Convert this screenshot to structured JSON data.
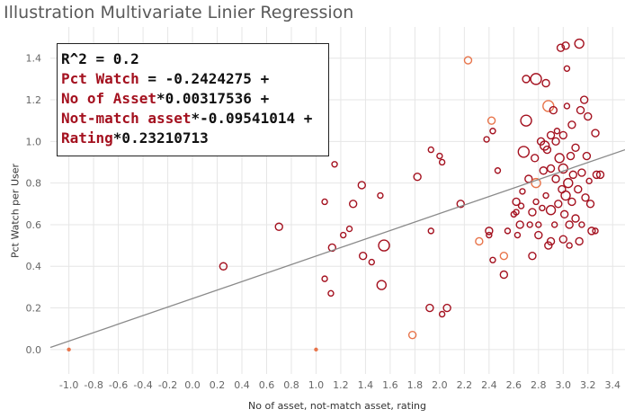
{
  "title": "Illustration Multivariate Linier Regression",
  "equation": {
    "r2": "R^2 = 0.2",
    "line1_label": "Pct Watch",
    "line1_value": " = -0.2424275 +",
    "line2_label": "No of Asset",
    "line2_value": "*0.00317536 +",
    "line3_label": "Not-match asset",
    "line3_value": "*-0.09541014 +",
    "line4_label": "Rating",
    "line4_value": "*0.23210713"
  },
  "colors": {
    "point_dark": "#a4111f",
    "point_light": "#e8744a",
    "trend": "#8a8a8a",
    "grid": "#e6e6e6",
    "tick": "#666666"
  },
  "chart_data": {
    "type": "scatter",
    "title": "Illustration Multivariate Linier Regression",
    "xlabel": "No of asset, not-match asset, rating",
    "ylabel": "Pct Watch per User",
    "xlim": [
      -1.15,
      3.5
    ],
    "ylim": [
      -0.1,
      1.55
    ],
    "x_ticks": [
      "-1.0",
      "-0.8",
      "-0.6",
      "-0.4",
      "-0.2",
      "0.0",
      "0.2",
      "0.4",
      "0.6",
      "0.8",
      "1.0",
      "1.2",
      "1.4",
      "1.6",
      "1.8",
      "2.0",
      "2.2",
      "2.4",
      "2.6",
      "2.8",
      "3.0",
      "3.2",
      "3.4"
    ],
    "y_ticks": [
      "0.0",
      "0.2",
      "0.4",
      "0.6",
      "0.8",
      "1.0",
      "1.2",
      "1.4"
    ],
    "grid": true,
    "trend_line": {
      "x": [
        -1.15,
        3.5
      ],
      "y": [
        0.01,
        0.96
      ]
    },
    "points": [
      {
        "x": -1.0,
        "y": 0.0,
        "s": 1,
        "c": "light"
      },
      {
        "x": 1.0,
        "y": 0.0,
        "s": 1,
        "c": "light"
      },
      {
        "x": 0.25,
        "y": 0.4,
        "s": 4,
        "c": "dark"
      },
      {
        "x": 0.7,
        "y": 0.59,
        "s": 4,
        "c": "dark"
      },
      {
        "x": 1.07,
        "y": 0.34,
        "s": 3,
        "c": "dark"
      },
      {
        "x": 1.12,
        "y": 0.27,
        "s": 3,
        "c": "dark"
      },
      {
        "x": 1.13,
        "y": 0.49,
        "s": 4,
        "c": "dark"
      },
      {
        "x": 1.07,
        "y": 0.71,
        "s": 3,
        "c": "dark"
      },
      {
        "x": 1.15,
        "y": 0.89,
        "s": 3,
        "c": "dark"
      },
      {
        "x": 1.22,
        "y": 0.55,
        "s": 3,
        "c": "dark"
      },
      {
        "x": 1.27,
        "y": 0.58,
        "s": 3,
        "c": "dark"
      },
      {
        "x": 1.3,
        "y": 0.7,
        "s": 4,
        "c": "dark"
      },
      {
        "x": 1.37,
        "y": 0.79,
        "s": 4,
        "c": "dark"
      },
      {
        "x": 1.38,
        "y": 0.45,
        "s": 4,
        "c": "dark"
      },
      {
        "x": 1.45,
        "y": 0.42,
        "s": 3,
        "c": "dark"
      },
      {
        "x": 1.53,
        "y": 0.31,
        "s": 5,
        "c": "dark"
      },
      {
        "x": 1.55,
        "y": 0.5,
        "s": 6,
        "c": "dark"
      },
      {
        "x": 1.52,
        "y": 0.74,
        "s": 3,
        "c": "dark"
      },
      {
        "x": 1.78,
        "y": 0.07,
        "s": 4,
        "c": "light"
      },
      {
        "x": 1.82,
        "y": 0.83,
        "s": 4,
        "c": "dark"
      },
      {
        "x": 1.92,
        "y": 0.2,
        "s": 4,
        "c": "dark"
      },
      {
        "x": 1.93,
        "y": 0.57,
        "s": 3,
        "c": "dark"
      },
      {
        "x": 1.93,
        "y": 0.96,
        "s": 3,
        "c": "dark"
      },
      {
        "x": 2.0,
        "y": 0.93,
        "s": 3,
        "c": "dark"
      },
      {
        "x": 2.02,
        "y": 0.9,
        "s": 3,
        "c": "dark"
      },
      {
        "x": 2.02,
        "y": 0.17,
        "s": 3,
        "c": "dark"
      },
      {
        "x": 2.06,
        "y": 0.2,
        "s": 4,
        "c": "dark"
      },
      {
        "x": 2.17,
        "y": 0.7,
        "s": 4,
        "c": "dark"
      },
      {
        "x": 2.23,
        "y": 1.39,
        "s": 4,
        "c": "light"
      },
      {
        "x": 2.32,
        "y": 0.52,
        "s": 4,
        "c": "light"
      },
      {
        "x": 2.38,
        "y": 1.01,
        "s": 3,
        "c": "dark"
      },
      {
        "x": 2.4,
        "y": 0.57,
        "s": 4,
        "c": "dark"
      },
      {
        "x": 2.4,
        "y": 0.55,
        "s": 3,
        "c": "dark"
      },
      {
        "x": 2.42,
        "y": 1.1,
        "s": 4,
        "c": "light"
      },
      {
        "x": 2.43,
        "y": 1.05,
        "s": 3,
        "c": "dark"
      },
      {
        "x": 2.43,
        "y": 0.43,
        "s": 3,
        "c": "dark"
      },
      {
        "x": 2.47,
        "y": 0.86,
        "s": 3,
        "c": "dark"
      },
      {
        "x": 2.52,
        "y": 0.36,
        "s": 4,
        "c": "dark"
      },
      {
        "x": 2.52,
        "y": 0.45,
        "s": 4,
        "c": "light"
      },
      {
        "x": 2.55,
        "y": 0.57,
        "s": 3,
        "c": "dark"
      },
      {
        "x": 2.62,
        "y": 0.71,
        "s": 4,
        "c": "dark"
      },
      {
        "x": 2.62,
        "y": 0.66,
        "s": 3,
        "c": "dark"
      },
      {
        "x": 2.63,
        "y": 0.55,
        "s": 3,
        "c": "dark"
      },
      {
        "x": 2.65,
        "y": 0.6,
        "s": 4,
        "c": "dark"
      },
      {
        "x": 2.66,
        "y": 0.69,
        "s": 3,
        "c": "dark"
      },
      {
        "x": 2.67,
        "y": 0.76,
        "s": 3,
        "c": "dark"
      },
      {
        "x": 2.68,
        "y": 0.95,
        "s": 6,
        "c": "dark"
      },
      {
        "x": 2.7,
        "y": 1.1,
        "s": 6,
        "c": "dark"
      },
      {
        "x": 2.7,
        "y": 1.3,
        "s": 4,
        "c": "dark"
      },
      {
        "x": 2.72,
        "y": 0.82,
        "s": 4,
        "c": "dark"
      },
      {
        "x": 2.73,
        "y": 0.6,
        "s": 3,
        "c": "dark"
      },
      {
        "x": 2.75,
        "y": 0.45,
        "s": 4,
        "c": "dark"
      },
      {
        "x": 2.75,
        "y": 0.66,
        "s": 4,
        "c": "dark"
      },
      {
        "x": 2.77,
        "y": 0.92,
        "s": 4,
        "c": "dark"
      },
      {
        "x": 2.78,
        "y": 0.71,
        "s": 3,
        "c": "dark"
      },
      {
        "x": 2.78,
        "y": 1.3,
        "s": 6,
        "c": "dark"
      },
      {
        "x": 2.78,
        "y": 0.8,
        "s": 5,
        "c": "light"
      },
      {
        "x": 2.8,
        "y": 0.55,
        "s": 4,
        "c": "dark"
      },
      {
        "x": 2.82,
        "y": 1.0,
        "s": 4,
        "c": "dark"
      },
      {
        "x": 2.83,
        "y": 0.68,
        "s": 3,
        "c": "dark"
      },
      {
        "x": 2.84,
        "y": 0.86,
        "s": 4,
        "c": "dark"
      },
      {
        "x": 2.85,
        "y": 0.98,
        "s": 5,
        "c": "dark"
      },
      {
        "x": 2.86,
        "y": 0.74,
        "s": 3,
        "c": "dark"
      },
      {
        "x": 2.87,
        "y": 0.96,
        "s": 4,
        "c": "dark"
      },
      {
        "x": 2.88,
        "y": 1.17,
        "s": 6,
        "c": "light"
      },
      {
        "x": 2.88,
        "y": 0.5,
        "s": 4,
        "c": "dark"
      },
      {
        "x": 2.9,
        "y": 0.67,
        "s": 5,
        "c": "dark"
      },
      {
        "x": 2.9,
        "y": 1.03,
        "s": 4,
        "c": "dark"
      },
      {
        "x": 2.9,
        "y": 0.87,
        "s": 4,
        "c": "dark"
      },
      {
        "x": 2.9,
        "y": 0.52,
        "s": 4,
        "c": "dark"
      },
      {
        "x": 2.92,
        "y": 1.15,
        "s": 4,
        "c": "dark"
      },
      {
        "x": 2.93,
        "y": 0.6,
        "s": 3,
        "c": "dark"
      },
      {
        "x": 2.94,
        "y": 0.82,
        "s": 4,
        "c": "dark"
      },
      {
        "x": 2.95,
        "y": 1.05,
        "s": 3,
        "c": "dark"
      },
      {
        "x": 2.96,
        "y": 0.7,
        "s": 4,
        "c": "dark"
      },
      {
        "x": 2.97,
        "y": 0.92,
        "s": 5,
        "c": "dark"
      },
      {
        "x": 2.98,
        "y": 1.45,
        "s": 4,
        "c": "dark"
      },
      {
        "x": 2.99,
        "y": 0.77,
        "s": 4,
        "c": "dark"
      },
      {
        "x": 3.0,
        "y": 0.53,
        "s": 4,
        "c": "dark"
      },
      {
        "x": 3.0,
        "y": 1.03,
        "s": 4,
        "c": "dark"
      },
      {
        "x": 3.0,
        "y": 0.87,
        "s": 5,
        "c": "dark"
      },
      {
        "x": 3.01,
        "y": 0.65,
        "s": 4,
        "c": "dark"
      },
      {
        "x": 3.02,
        "y": 0.74,
        "s": 5,
        "c": "dark"
      },
      {
        "x": 3.02,
        "y": 1.46,
        "s": 4,
        "c": "dark"
      },
      {
        "x": 3.03,
        "y": 1.35,
        "s": 3,
        "c": "dark"
      },
      {
        "x": 3.03,
        "y": 1.17,
        "s": 3,
        "c": "dark"
      },
      {
        "x": 3.04,
        "y": 0.8,
        "s": 5,
        "c": "dark"
      },
      {
        "x": 3.05,
        "y": 0.6,
        "s": 4,
        "c": "dark"
      },
      {
        "x": 3.05,
        "y": 0.5,
        "s": 3,
        "c": "dark"
      },
      {
        "x": 3.06,
        "y": 0.93,
        "s": 4,
        "c": "dark"
      },
      {
        "x": 3.07,
        "y": 1.08,
        "s": 4,
        "c": "dark"
      },
      {
        "x": 3.07,
        "y": 0.71,
        "s": 4,
        "c": "dark"
      },
      {
        "x": 3.08,
        "y": 0.84,
        "s": 4,
        "c": "dark"
      },
      {
        "x": 3.1,
        "y": 0.63,
        "s": 4,
        "c": "dark"
      },
      {
        "x": 3.1,
        "y": 0.97,
        "s": 4,
        "c": "dark"
      },
      {
        "x": 3.12,
        "y": 0.77,
        "s": 4,
        "c": "dark"
      },
      {
        "x": 3.13,
        "y": 1.47,
        "s": 5,
        "c": "dark"
      },
      {
        "x": 3.13,
        "y": 0.52,
        "s": 4,
        "c": "dark"
      },
      {
        "x": 3.14,
        "y": 1.15,
        "s": 4,
        "c": "dark"
      },
      {
        "x": 3.15,
        "y": 0.85,
        "s": 4,
        "c": "dark"
      },
      {
        "x": 3.15,
        "y": 0.6,
        "s": 3,
        "c": "dark"
      },
      {
        "x": 3.17,
        "y": 1.2,
        "s": 4,
        "c": "dark"
      },
      {
        "x": 3.18,
        "y": 0.73,
        "s": 4,
        "c": "dark"
      },
      {
        "x": 3.19,
        "y": 0.93,
        "s": 4,
        "c": "dark"
      },
      {
        "x": 3.2,
        "y": 1.12,
        "s": 4,
        "c": "dark"
      },
      {
        "x": 3.21,
        "y": 0.81,
        "s": 3,
        "c": "dark"
      },
      {
        "x": 3.22,
        "y": 0.7,
        "s": 4,
        "c": "dark"
      },
      {
        "x": 3.23,
        "y": 0.57,
        "s": 4,
        "c": "dark"
      },
      {
        "x": 3.26,
        "y": 1.04,
        "s": 4,
        "c": "dark"
      },
      {
        "x": 3.26,
        "y": 0.57,
        "s": 3,
        "c": "dark"
      },
      {
        "x": 3.27,
        "y": 0.84,
        "s": 4,
        "c": "dark"
      },
      {
        "x": 3.3,
        "y": 0.84,
        "s": 4,
        "c": "dark"
      },
      {
        "x": 2.8,
        "y": 0.6,
        "s": 3,
        "c": "dark"
      },
      {
        "x": 2.6,
        "y": 0.65,
        "s": 3,
        "c": "dark"
      },
      {
        "x": 2.86,
        "y": 1.28,
        "s": 4,
        "c": "dark"
      },
      {
        "x": 2.94,
        "y": 1.0,
        "s": 4,
        "c": "dark"
      }
    ]
  }
}
